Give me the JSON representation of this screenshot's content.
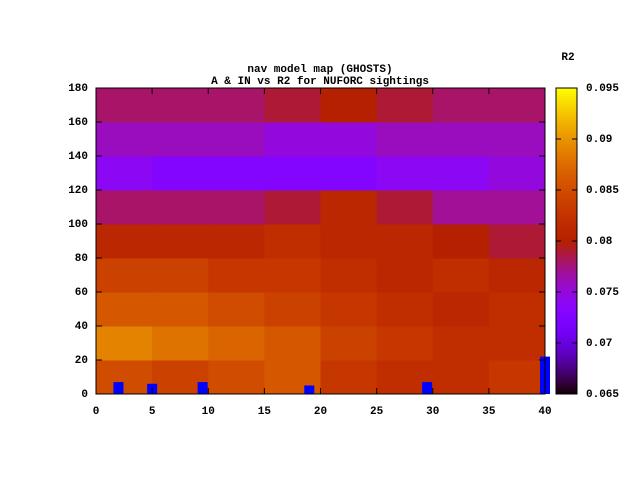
{
  "chart_data": {
    "type": "heatmap",
    "title": [
      "nav model map (GHOSTS)",
      "A & IN vs R2 for NUFORC sightings"
    ],
    "colorbar_label": "R2",
    "colormap": "gnuplot",
    "x_edges": [
      0,
      5,
      10,
      15,
      20,
      25,
      30,
      35,
      40
    ],
    "y_edges": [
      0,
      20,
      40,
      60,
      80,
      100,
      120,
      140,
      160,
      180
    ],
    "z": [
      [
        0.085,
        0.084,
        0.085,
        0.086,
        0.083,
        0.082,
        0.082,
        0.083
      ],
      [
        0.089,
        0.088,
        0.087,
        0.086,
        0.084,
        0.083,
        0.082,
        0.082
      ],
      [
        0.086,
        0.086,
        0.085,
        0.084,
        0.083,
        0.082,
        0.081,
        0.082
      ],
      [
        0.084,
        0.084,
        0.083,
        0.083,
        0.082,
        0.081,
        0.082,
        0.081
      ],
      [
        0.081,
        0.081,
        0.081,
        0.082,
        0.081,
        0.081,
        0.08,
        0.079
      ],
      [
        0.078,
        0.078,
        0.078,
        0.079,
        0.081,
        0.079,
        0.077,
        0.077
      ],
      [
        0.074,
        0.073,
        0.073,
        0.073,
        0.073,
        0.074,
        0.074,
        0.075
      ],
      [
        0.076,
        0.076,
        0.076,
        0.075,
        0.075,
        0.076,
        0.076,
        0.076
      ],
      [
        0.078,
        0.078,
        0.078,
        0.079,
        0.08,
        0.079,
        0.078,
        0.078
      ]
    ],
    "points": {
      "color": "#0000ff",
      "x": [
        2,
        5,
        9.5,
        19,
        29.5,
        40
      ],
      "y": [
        7,
        6,
        7,
        5,
        7,
        22
      ]
    },
    "xlim": [
      0,
      40
    ],
    "xticks": [
      0,
      5,
      10,
      15,
      20,
      25,
      30,
      35,
      40
    ],
    "ylim": [
      0,
      180
    ],
    "yticks": [
      0,
      20,
      40,
      60,
      80,
      100,
      120,
      140,
      160,
      180
    ],
    "zlim": [
      0.065,
      0.095
    ],
    "zticks": [
      0.065,
      0.07,
      0.075,
      0.08,
      0.085,
      0.09,
      0.095
    ]
  }
}
